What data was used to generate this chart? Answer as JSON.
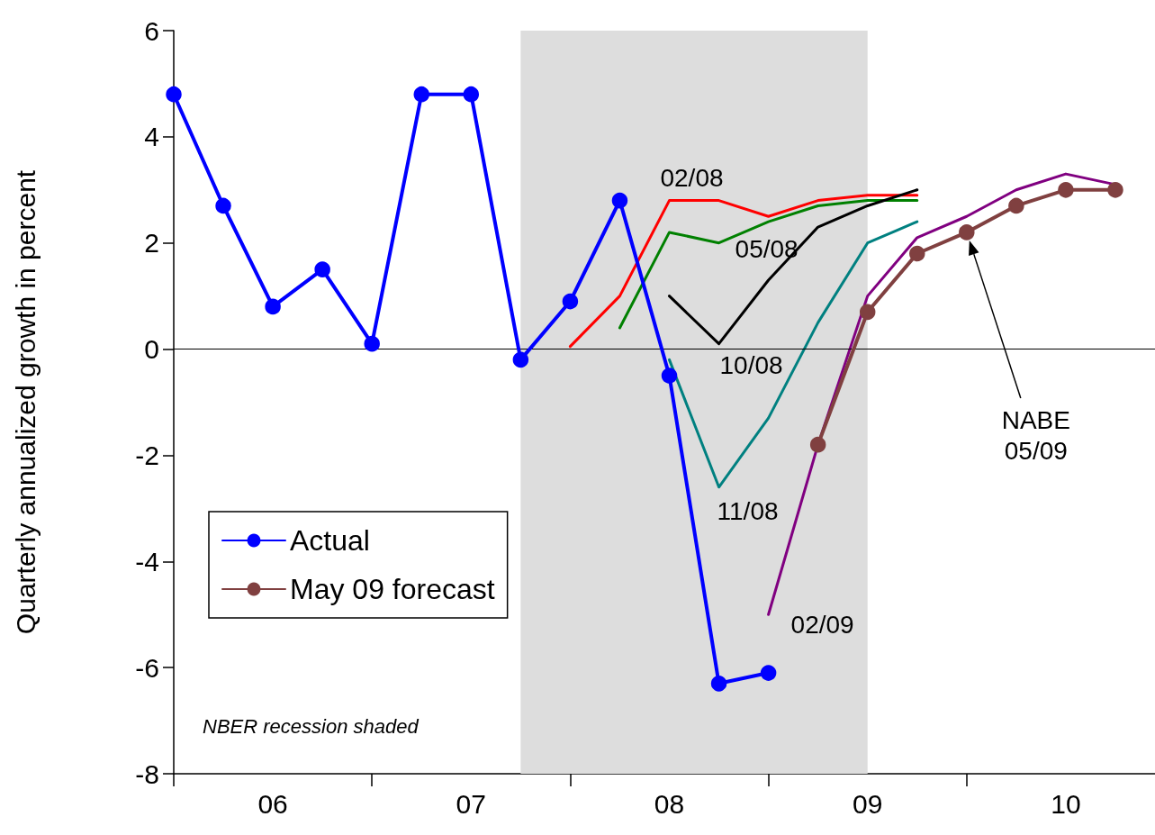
{
  "chart_data": {
    "type": "line",
    "ylabel": "Quarterly annualized growth in percent",
    "xlim": [
      5.5,
      10.45
    ],
    "xticks": [
      {
        "value": 5.5,
        "label": null
      },
      {
        "value": 6,
        "label": "06"
      },
      {
        "value": 6.5,
        "label": null
      },
      {
        "value": 7,
        "label": "07"
      },
      {
        "value": 7.5,
        "label": null
      },
      {
        "value": 8,
        "label": "08"
      },
      {
        "value": 8.5,
        "label": null
      },
      {
        "value": 9,
        "label": "09"
      },
      {
        "value": 9.5,
        "label": null
      },
      {
        "value": 10,
        "label": "10"
      }
    ],
    "ylim": [
      -8,
      6
    ],
    "yticks": [
      -8,
      -6,
      -4,
      -2,
      0,
      2,
      4,
      6
    ],
    "grid": false,
    "legend": "bottom left",
    "line_style": "solid",
    "series": [
      {
        "name": "Actual",
        "color": "#0000ff",
        "marker": "circle",
        "x": [
          5.5,
          5.75,
          6,
          6.25,
          6.5,
          6.75,
          7,
          7.25,
          7.5,
          7.75,
          8,
          8.25,
          8.5
        ],
        "values": [
          4.8,
          2.7,
          0.8,
          1.5,
          0.1,
          4.8,
          4.8,
          -0.2,
          0.9,
          2.8,
          -0.5,
          -6.3,
          -6.1
        ]
      },
      {
        "name": "02/08",
        "color": "#ff0000",
        "marker": "none",
        "x": [
          7.5,
          7.75,
          8,
          8.25,
          8.5,
          8.75,
          9,
          9.25
        ],
        "values": [
          0.05,
          1.0,
          2.8,
          2.8,
          2.5,
          2.8,
          2.9,
          2.9
        ]
      },
      {
        "name": "05/08",
        "color": "#008000",
        "marker": "none",
        "x": [
          7.75,
          8,
          8.25,
          8.5,
          8.75,
          9,
          9.25
        ],
        "values": [
          0.4,
          2.2,
          2.0,
          2.4,
          2.7,
          2.8,
          2.8
        ]
      },
      {
        "name": "10/08",
        "color": "#000000",
        "marker": "none",
        "x": [
          8,
          8.25,
          8.5,
          8.75,
          9,
          9.25
        ],
        "values": [
          1.0,
          0.1,
          1.3,
          2.3,
          2.7,
          3.0
        ]
      },
      {
        "name": "11/08",
        "color": "#008080",
        "marker": "none",
        "x": [
          8,
          8.25,
          8.5,
          8.75,
          9,
          9.25
        ],
        "values": [
          -0.2,
          -2.6,
          -1.3,
          0.5,
          2.0,
          2.4
        ]
      },
      {
        "name": "02/09",
        "color": "#800080",
        "marker": "none",
        "x": [
          8.5,
          8.75,
          9,
          9.25,
          9.5,
          9.75,
          10,
          10.25
        ],
        "values": [
          -5.0,
          -1.8,
          1.0,
          2.1,
          2.5,
          3.0,
          3.3,
          3.1
        ]
      },
      {
        "name": "May 09 forecast",
        "color": "#804040",
        "marker": "circle",
        "x": [
          8.75,
          9,
          9.25,
          9.5,
          9.75,
          10,
          10.25
        ],
        "values": [
          -1.8,
          0.7,
          1.8,
          2.2,
          2.7,
          3.0,
          3.0
        ]
      }
    ],
    "ref_lines": [
      {
        "axis": "y",
        "value": 0,
        "color": "#000000"
      }
    ],
    "bands": [
      {
        "axis": "x",
        "from": 7.25,
        "to": 9,
        "color": "#dddddd"
      }
    ],
    "annotations": [
      "NABE\n05/09",
      "NBER recession shaded"
    ]
  }
}
